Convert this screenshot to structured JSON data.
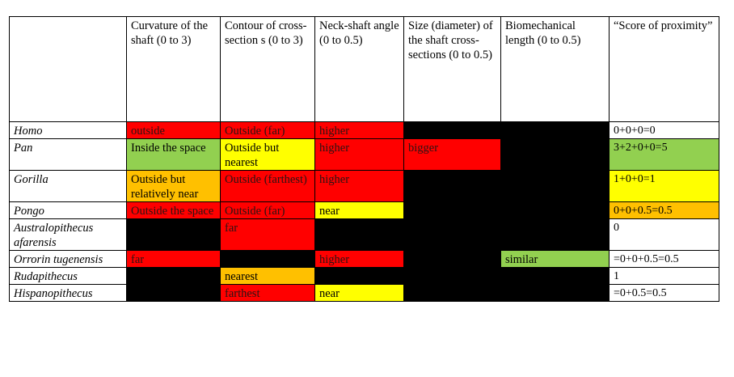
{
  "columns": [
    "",
    "Curvature of the shaft (0 to 3)",
    "Contour of cross-section s (0 to 3)",
    "Neck-shaft angle (0 to 0.5)",
    "Size (diameter) of the shaft cross-sections (0 to 0.5)",
    "Biomechanical length (0 to 0.5)",
    "“Score of proximity”"
  ],
  "colors": {
    "red": "#ff0000",
    "green": "#92d050",
    "yellow": "#ffff00",
    "orange": "#ffc000",
    "black": "#000000",
    "white": "#ffffff"
  },
  "rows": [
    {
      "taxon": "Homo",
      "cells": [
        {
          "text": "outside",
          "color": "red"
        },
        {
          "text": "Outside (far)",
          "color": "red"
        },
        {
          "text": "higher",
          "color": "red"
        },
        {
          "text": "",
          "color": "black"
        },
        {
          "text": "",
          "color": "black"
        },
        {
          "text": "0+0+0=0",
          "color": "white"
        }
      ]
    },
    {
      "taxon": "Pan",
      "cells": [
        {
          "text": "Inside the space",
          "color": "green"
        },
        {
          "text": "Outside but nearest",
          "color": "yellow"
        },
        {
          "text": "higher",
          "color": "red"
        },
        {
          "text": "bigger",
          "color": "red"
        },
        {
          "text": "",
          "color": "black"
        },
        {
          "text": "3+2+0+0=5",
          "color": "green"
        }
      ]
    },
    {
      "taxon": "Gorilla",
      "cells": [
        {
          "text": "Outside but relatively near",
          "color": "orange"
        },
        {
          "text": "Outside (farthest)",
          "color": "red"
        },
        {
          "text": "higher",
          "color": "red"
        },
        {
          "text": "",
          "color": "black"
        },
        {
          "text": "",
          "color": "black"
        },
        {
          "text": "1+0+0=1",
          "color": "yellow"
        }
      ]
    },
    {
      "taxon": "Pongo",
      "cells": [
        {
          "text": "Outside the space",
          "color": "red"
        },
        {
          "text": "Outside (far)",
          "color": "red"
        },
        {
          "text": "near",
          "color": "yellow"
        },
        {
          "text": "",
          "color": "black"
        },
        {
          "text": "",
          "color": "black"
        },
        {
          "text": "0+0+0.5=0.5",
          "color": "orange"
        }
      ]
    },
    {
      "taxon": "Australopithecus afarensis",
      "cells": [
        {
          "text": "",
          "color": "black"
        },
        {
          "text": "far",
          "color": "red"
        },
        {
          "text": "",
          "color": "black"
        },
        {
          "text": "",
          "color": "black"
        },
        {
          "text": "",
          "color": "black"
        },
        {
          "text": "0",
          "color": "white"
        }
      ]
    },
    {
      "taxon": "Orrorin tugenensis",
      "cells": [
        {
          "text": "far",
          "color": "red"
        },
        {
          "text": "",
          "color": "black"
        },
        {
          "text": "higher",
          "color": "red"
        },
        {
          "text": "",
          "color": "black"
        },
        {
          "text": "similar",
          "color": "green"
        },
        {
          "text": "=0+0+0.5=0.5",
          "color": "white"
        }
      ]
    },
    {
      "taxon": "Rudapithecus",
      "cells": [
        {
          "text": "",
          "color": "black"
        },
        {
          "text": "nearest",
          "color": "orange"
        },
        {
          "text": "",
          "color": "black"
        },
        {
          "text": "",
          "color": "black"
        },
        {
          "text": "",
          "color": "black"
        },
        {
          "text": "1",
          "color": "white"
        }
      ]
    },
    {
      "taxon": "Hispanopithecus",
      "cells": [
        {
          "text": "",
          "color": "black"
        },
        {
          "text": "farthest",
          "color": "red"
        },
        {
          "text": "near",
          "color": "yellow"
        },
        {
          "text": "",
          "color": "black"
        },
        {
          "text": "",
          "color": "black"
        },
        {
          "text": "=0+0.5=0.5",
          "color": "white"
        }
      ]
    }
  ]
}
